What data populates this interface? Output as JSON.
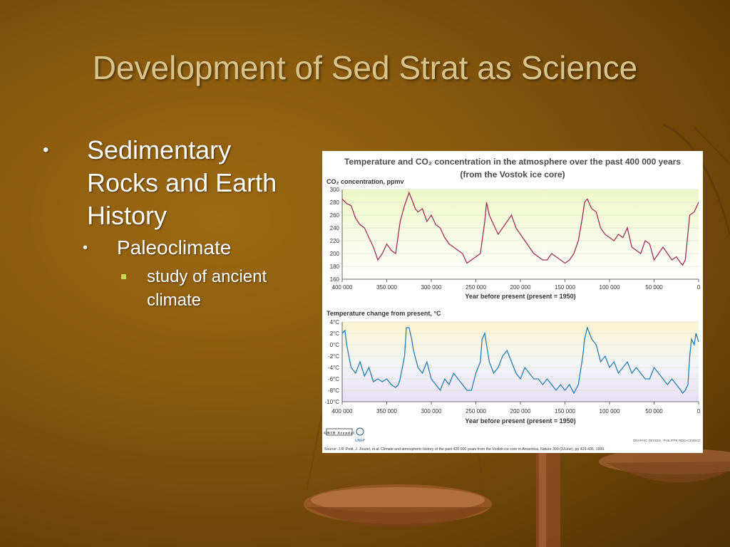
{
  "slide": {
    "title": "Development of Sed Strat as Science",
    "bullets": {
      "l1": "Sedimentary Rocks and Earth History",
      "l2": "Paleoclimate",
      "l3": "study of ancient climate"
    },
    "bullet_glyph": "•"
  },
  "figure": {
    "title_line1": "Temperature and CO₂ concentration in the atmosphere over the past 400 000 years",
    "title_line2": "(from the Vostok ice core)",
    "logo_text": "GRID Arendal",
    "logo_text2": "UNEP",
    "credit": "GRAPHIC DESIGN : PHILIPPE REKACEWICZ",
    "source": "Source: J.R. Petit, J. Jouzel, et al. Climate and atmospheric history of the past 420 000 years from the Vostok ice core in Antarctica, Nature 399 (3JUne), pp 429-436, 1999."
  },
  "colors": {
    "co2_line": "#a0305a",
    "temp_line": "#2a7fb0",
    "co2_bg_top": "#eef7c8",
    "temp_bg_top": "#fbf3d0",
    "temp_bg_bottom": "#e8e0f4"
  },
  "chart_data": [
    {
      "type": "line",
      "ylabel": "CO₂ concentration, ppmv",
      "xlabel": "Year before present (present = 1950)",
      "xlim": [
        400000,
        0
      ],
      "ylim": [
        160,
        300
      ],
      "xticks": [
        "400 000",
        "350 000",
        "300 000",
        "250 000",
        "200 000",
        "150 000",
        "100 000",
        "50 000",
        "0"
      ],
      "yticks": [
        "300",
        "280",
        "260",
        "240",
        "220",
        "200",
        "180",
        "160"
      ],
      "series": [
        {
          "x": [
            400000,
            395000,
            390000,
            385000,
            380000,
            375000,
            370000,
            365000,
            360000,
            355000,
            350000,
            345000,
            340000,
            335000,
            330000,
            325000,
            322000,
            318000,
            315000,
            310000,
            305000,
            300000,
            295000,
            290000,
            285000,
            280000,
            275000,
            270000,
            265000,
            260000,
            255000,
            250000,
            245000,
            240000,
            238000,
            235000,
            230000,
            225000,
            220000,
            215000,
            210000,
            205000,
            200000,
            195000,
            190000,
            185000,
            180000,
            175000,
            170000,
            165000,
            160000,
            155000,
            150000,
            145000,
            140000,
            135000,
            130000,
            128000,
            125000,
            120000,
            115000,
            110000,
            105000,
            100000,
            95000,
            90000,
            85000,
            80000,
            75000,
            70000,
            65000,
            60000,
            55000,
            50000,
            45000,
            40000,
            35000,
            30000,
            25000,
            20000,
            18000,
            15000,
            10000,
            5000,
            0
          ],
          "values": [
            285,
            278,
            275,
            255,
            245,
            240,
            225,
            210,
            190,
            200,
            215,
            205,
            200,
            250,
            275,
            295,
            285,
            270,
            265,
            270,
            250,
            260,
            245,
            240,
            225,
            215,
            210,
            205,
            200,
            185,
            190,
            195,
            200,
            250,
            280,
            260,
            245,
            230,
            240,
            250,
            260,
            240,
            230,
            220,
            210,
            200,
            195,
            190,
            190,
            200,
            195,
            190,
            185,
            190,
            200,
            220,
            260,
            280,
            285,
            270,
            265,
            240,
            230,
            225,
            220,
            230,
            225,
            240,
            210,
            205,
            200,
            220,
            215,
            190,
            200,
            210,
            200,
            190,
            195,
            185,
            182,
            190,
            260,
            265,
            280
          ]
        }
      ]
    },
    {
      "type": "line",
      "ylabel": "Temperature change from present, °C",
      "xlabel": "Year before present (present = 1950)",
      "xlim": [
        400000,
        0
      ],
      "ylim": [
        -10,
        4
      ],
      "xticks": [
        "400 000",
        "350 000",
        "300 000",
        "250 000",
        "200 000",
        "150 000",
        "100 000",
        "50 000",
        "0"
      ],
      "yticks": [
        "4°C",
        "2°C",
        "0°C",
        "-2°C",
        "-4°C",
        "-6°C",
        "-8°C",
        "-10°C"
      ],
      "series": [
        {
          "x": [
            400000,
            397000,
            395000,
            390000,
            385000,
            380000,
            375000,
            370000,
            365000,
            360000,
            355000,
            350000,
            345000,
            340000,
            337000,
            335000,
            330000,
            328000,
            325000,
            322000,
            320000,
            315000,
            310000,
            305000,
            300000,
            295000,
            290000,
            285000,
            280000,
            275000,
            270000,
            265000,
            260000,
            255000,
            250000,
            245000,
            243000,
            240000,
            238000,
            235000,
            230000,
            225000,
            220000,
            215000,
            210000,
            205000,
            200000,
            195000,
            190000,
            185000,
            180000,
            175000,
            170000,
            165000,
            160000,
            155000,
            150000,
            145000,
            140000,
            135000,
            130000,
            128000,
            125000,
            120000,
            115000,
            110000,
            105000,
            100000,
            95000,
            90000,
            85000,
            80000,
            75000,
            70000,
            65000,
            60000,
            55000,
            50000,
            45000,
            40000,
            35000,
            30000,
            25000,
            20000,
            18000,
            15000,
            12000,
            10000,
            8000,
            5000,
            3000,
            0
          ],
          "values": [
            2,
            2.5,
            0,
            -4,
            -5,
            -3,
            -5.5,
            -4,
            -6.5,
            -6,
            -6.5,
            -6,
            -7,
            -7.5,
            -7,
            -6,
            -2,
            3,
            3,
            1,
            -1,
            -4,
            -5,
            -3,
            -6,
            -7,
            -8,
            -6,
            -7,
            -5,
            -6,
            -7,
            -8,
            -8,
            -5,
            -3,
            1,
            2,
            0,
            -3,
            -5,
            -4,
            -2,
            -1,
            -3,
            -5,
            -6,
            -4,
            -5,
            -6,
            -6,
            -7,
            -6,
            -7,
            -8,
            -7,
            -8,
            -7,
            -8.5,
            -7,
            -2,
            1,
            3,
            1,
            0,
            -3,
            -2,
            -4,
            -3,
            -5,
            -4,
            -3,
            -5,
            -4,
            -5,
            -6,
            -6,
            -4,
            -5,
            -6,
            -7,
            -6,
            -7,
            -8,
            -8.5,
            -8,
            -7,
            -2,
            1,
            0,
            2,
            0.5
          ]
        }
      ]
    }
  ]
}
